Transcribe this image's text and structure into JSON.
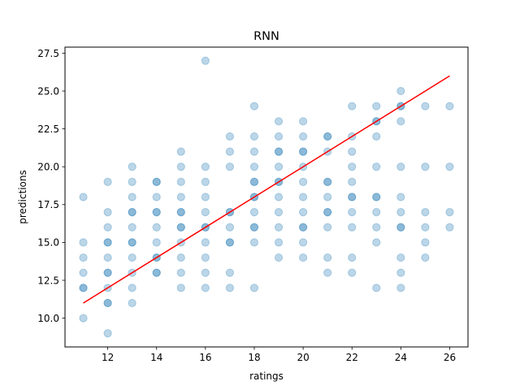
{
  "chart_data": {
    "type": "scatter",
    "title": "RNN",
    "xlabel": "ratings",
    "ylabel": "predictions",
    "xlim": [
      10.25,
      26.75
    ],
    "ylim": [
      8.1,
      27.9
    ],
    "xticks": [
      12,
      14,
      16,
      18,
      20,
      22,
      24,
      26
    ],
    "yticks": [
      10.0,
      12.5,
      15.0,
      17.5,
      20.0,
      22.5,
      25.0,
      27.5
    ],
    "xtick_labels": [
      "12",
      "14",
      "16",
      "18",
      "20",
      "22",
      "24",
      "26"
    ],
    "ytick_labels": [
      "10.0",
      "12.5",
      "15.0",
      "17.5",
      "20.0",
      "22.5",
      "25.0",
      "27.5"
    ],
    "grid": false,
    "colors": {
      "points": "#1f77b4",
      "line": "#ff0000"
    },
    "points": [
      [
        11,
        18
      ],
      [
        11,
        15
      ],
      [
        11,
        14
      ],
      [
        11,
        13
      ],
      [
        11,
        12
      ],
      [
        11,
        12
      ],
      [
        11,
        10
      ],
      [
        12,
        19
      ],
      [
        12,
        17
      ],
      [
        12,
        16
      ],
      [
        12,
        15
      ],
      [
        12,
        15
      ],
      [
        12,
        14
      ],
      [
        12,
        13
      ],
      [
        12,
        13
      ],
      [
        12,
        12
      ],
      [
        12,
        11
      ],
      [
        12,
        11
      ],
      [
        12,
        9
      ],
      [
        13,
        20
      ],
      [
        13,
        19
      ],
      [
        13,
        18
      ],
      [
        13,
        17
      ],
      [
        13,
        17
      ],
      [
        13,
        16
      ],
      [
        13,
        15
      ],
      [
        13,
        15
      ],
      [
        13,
        14
      ],
      [
        13,
        13
      ],
      [
        13,
        12
      ],
      [
        13,
        11
      ],
      [
        14,
        19
      ],
      [
        14,
        19
      ],
      [
        14,
        18
      ],
      [
        14,
        17
      ],
      [
        14,
        17
      ],
      [
        14,
        16
      ],
      [
        14,
        15
      ],
      [
        14,
        14
      ],
      [
        14,
        14
      ],
      [
        14,
        13
      ],
      [
        14,
        13
      ],
      [
        15,
        21
      ],
      [
        15,
        20
      ],
      [
        15,
        19
      ],
      [
        15,
        18
      ],
      [
        15,
        17
      ],
      [
        15,
        17
      ],
      [
        15,
        16
      ],
      [
        15,
        16
      ],
      [
        15,
        15
      ],
      [
        15,
        14
      ],
      [
        15,
        13
      ],
      [
        15,
        12
      ],
      [
        16,
        27
      ],
      [
        16,
        20
      ],
      [
        16,
        19
      ],
      [
        16,
        18
      ],
      [
        16,
        17
      ],
      [
        16,
        16
      ],
      [
        16,
        16
      ],
      [
        16,
        15
      ],
      [
        16,
        14
      ],
      [
        16,
        13
      ],
      [
        16,
        12
      ],
      [
        17,
        22
      ],
      [
        17,
        21
      ],
      [
        17,
        20
      ],
      [
        17,
        17
      ],
      [
        17,
        17
      ],
      [
        17,
        16
      ],
      [
        17,
        15
      ],
      [
        17,
        15
      ],
      [
        17,
        13
      ],
      [
        17,
        12
      ],
      [
        18,
        24
      ],
      [
        18,
        22
      ],
      [
        18,
        21
      ],
      [
        18,
        20
      ],
      [
        18,
        19
      ],
      [
        18,
        19
      ],
      [
        18,
        18
      ],
      [
        18,
        18
      ],
      [
        18,
        17
      ],
      [
        18,
        16
      ],
      [
        18,
        16
      ],
      [
        18,
        15
      ],
      [
        18,
        12
      ],
      [
        19,
        23
      ],
      [
        19,
        22
      ],
      [
        19,
        21
      ],
      [
        19,
        21
      ],
      [
        19,
        20
      ],
      [
        19,
        19
      ],
      [
        19,
        19
      ],
      [
        19,
        18
      ],
      [
        19,
        17
      ],
      [
        19,
        16
      ],
      [
        19,
        15
      ],
      [
        19,
        14
      ],
      [
        20,
        23
      ],
      [
        20,
        22
      ],
      [
        20,
        21
      ],
      [
        20,
        21
      ],
      [
        20,
        20
      ],
      [
        20,
        19
      ],
      [
        20,
        18
      ],
      [
        20,
        17
      ],
      [
        20,
        16
      ],
      [
        20,
        16
      ],
      [
        20,
        15
      ],
      [
        20,
        14
      ],
      [
        21,
        22
      ],
      [
        21,
        22
      ],
      [
        21,
        21
      ],
      [
        21,
        19
      ],
      [
        21,
        19
      ],
      [
        21,
        18
      ],
      [
        21,
        17
      ],
      [
        21,
        17
      ],
      [
        21,
        16
      ],
      [
        21,
        14
      ],
      [
        21,
        13
      ],
      [
        22,
        24
      ],
      [
        22,
        22
      ],
      [
        22,
        21
      ],
      [
        22,
        20
      ],
      [
        22,
        19
      ],
      [
        22,
        18
      ],
      [
        22,
        18
      ],
      [
        22,
        17
      ],
      [
        22,
        16
      ],
      [
        22,
        14
      ],
      [
        22,
        13
      ],
      [
        23,
        24
      ],
      [
        23,
        23
      ],
      [
        23,
        23
      ],
      [
        23,
        22
      ],
      [
        23,
        20
      ],
      [
        23,
        18
      ],
      [
        23,
        18
      ],
      [
        23,
        17
      ],
      [
        23,
        16
      ],
      [
        23,
        15
      ],
      [
        23,
        12
      ],
      [
        24,
        25
      ],
      [
        24,
        24
      ],
      [
        24,
        24
      ],
      [
        24,
        23
      ],
      [
        24,
        20
      ],
      [
        24,
        18
      ],
      [
        24,
        17
      ],
      [
        24,
        16
      ],
      [
        24,
        16
      ],
      [
        24,
        14
      ],
      [
        24,
        13
      ],
      [
        24,
        12
      ],
      [
        25,
        24
      ],
      [
        25,
        20
      ],
      [
        25,
        17
      ],
      [
        25,
        16
      ],
      [
        25,
        15
      ],
      [
        25,
        14
      ],
      [
        26,
        24
      ],
      [
        26,
        20
      ],
      [
        26,
        17
      ],
      [
        26,
        16
      ]
    ],
    "fit_line": {
      "x": [
        11,
        26
      ],
      "y": [
        11,
        26
      ]
    }
  }
}
